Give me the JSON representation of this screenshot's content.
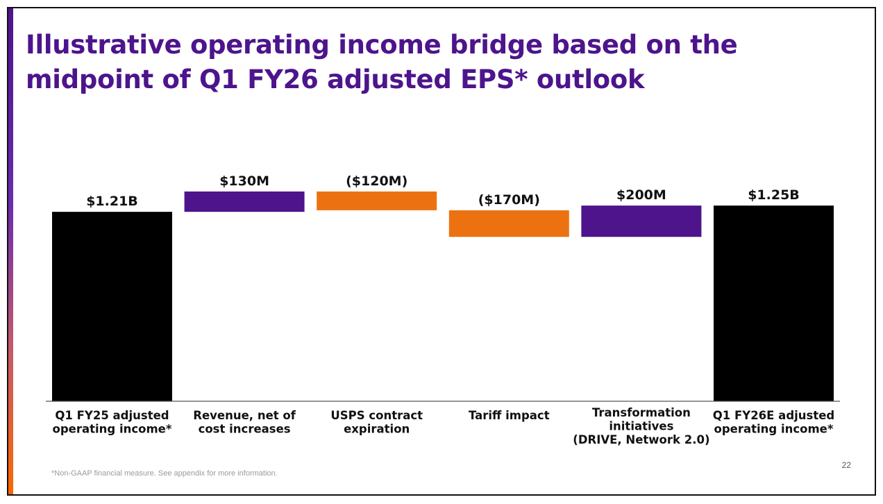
{
  "slide": {
    "title": "Illustrative operating income bridge based on the midpoint of Q1 FY26 adjusted EPS* outlook",
    "footnote": "*Non-GAAP financial measure. See appendix for more information.",
    "page_number": "22"
  },
  "colors": {
    "purple": "#4d148c",
    "orange": "#ec7211",
    "black": "#000000",
    "axis": "#555555"
  },
  "chart_data": {
    "type": "bar",
    "subtype": "waterfall",
    "units": "USD millions",
    "ylim": [
      0,
      1800
    ],
    "grid": false,
    "legend": "none",
    "categories": [
      [
        "Q1 FY25 adjusted",
        "operating income*"
      ],
      [
        "Revenue, net of",
        "cost increases"
      ],
      [
        "USPS contract",
        "expiration"
      ],
      [
        "Tariff impact"
      ],
      [
        "Transformation",
        "initiatives",
        "(DRIVE, Network 2.0)"
      ],
      [
        "Q1 FY26E adjusted",
        "operating income*"
      ]
    ],
    "steps": [
      {
        "kind": "total",
        "value": 1210,
        "label": "$1.21B",
        "color": "black"
      },
      {
        "kind": "delta",
        "value": 130,
        "label": "$130M",
        "color": "purple"
      },
      {
        "kind": "delta",
        "value": -120,
        "label": "($120M)",
        "color": "orange"
      },
      {
        "kind": "delta",
        "value": -170,
        "label": "($170M)",
        "color": "orange"
      },
      {
        "kind": "delta",
        "value": 200,
        "label": "$200M",
        "color": "purple"
      },
      {
        "kind": "total",
        "value": 1250,
        "label": "$1.25B",
        "color": "black"
      }
    ]
  }
}
